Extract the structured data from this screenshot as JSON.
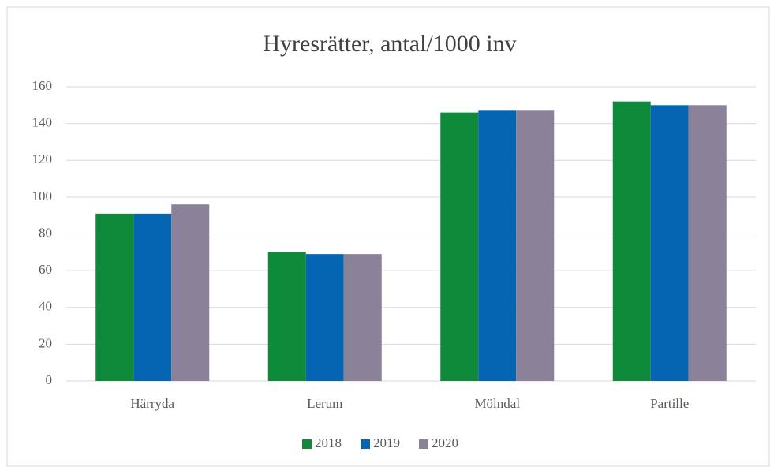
{
  "chart_data": {
    "type": "bar",
    "title": "Hyresrätter, antal/1000  inv",
    "categories": [
      "Härryda",
      "Lerum",
      "Mölndal",
      "Partille"
    ],
    "series": [
      {
        "name": "2018",
        "color": "#0f8a3a",
        "values": [
          91,
          70,
          146,
          152
        ]
      },
      {
        "name": "2019",
        "color": "#0565b2",
        "values": [
          91,
          69,
          147,
          150
        ]
      },
      {
        "name": "2020",
        "color": "#8b8199",
        "values": [
          96,
          69,
          147,
          150
        ]
      }
    ],
    "ylim": [
      0,
      160
    ],
    "yticks": [
      0,
      20,
      40,
      60,
      80,
      100,
      120,
      140,
      160
    ],
    "grid": true,
    "legend": "bottom"
  }
}
